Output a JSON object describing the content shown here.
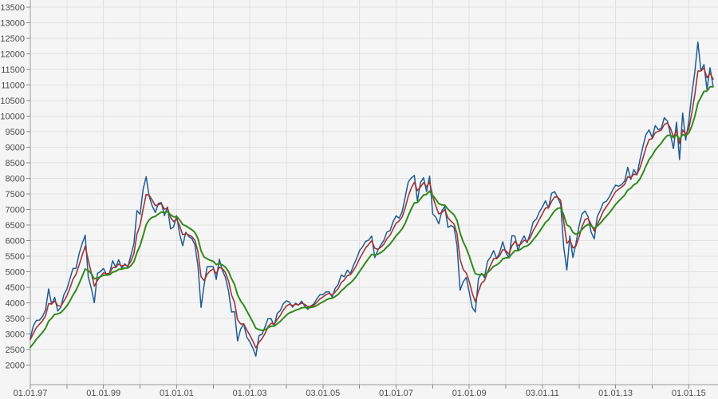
{
  "window": {
    "background": "#f5f5f5"
  },
  "chart": {
    "colors": {
      "background": "#f5f5f5",
      "grid": "#e1e1e1",
      "axis": "#9a9a9a",
      "tick": "#8a8a8a",
      "label_text": "#4c4c4c",
      "price": "#1d5c94",
      "ma_fast": "#a03434",
      "ma_slow": "#318a1c"
    }
  },
  "chart_data": {
    "type": "line",
    "title": "",
    "xlabel": "",
    "ylabel": "",
    "grid": true,
    "legend": false,
    "x_axis": {
      "start_year": 1997,
      "end_year": 2015,
      "minor_tick_every_years": 1,
      "label_every_years": 2,
      "tick_labels": [
        {
          "year": 1997,
          "label": "01.01.97"
        },
        {
          "year": 1999,
          "label": "01.01.99"
        },
        {
          "year": 2001,
          "label": "01.01.01"
        },
        {
          "year": 2003,
          "label": "01.01.03"
        },
        {
          "year": 2005,
          "label": "03.01.05"
        },
        {
          "year": 2007,
          "label": "01.01.07"
        },
        {
          "year": 2009,
          "label": "01.01.09"
        },
        {
          "year": 2011,
          "label": "03.01.11"
        },
        {
          "year": 2013,
          "label": "01.01.13"
        },
        {
          "year": 2015,
          "label": "01.01.15"
        }
      ]
    },
    "y_axis": {
      "tick_step": 500,
      "tick_values": [
        13500,
        13000,
        12500,
        12000,
        11500,
        11000,
        10500,
        10000,
        9500,
        9000,
        8500,
        8000,
        7500,
        7000,
        6500,
        6000,
        5500,
        5000,
        4500,
        4000,
        3500,
        3000,
        2500,
        2000
      ],
      "range_shown": [
        1350,
        13700
      ]
    },
    "sampling": "monthly samples, Jan 1997 - Sep 2015",
    "series": [
      {
        "name": "index-price",
        "color_key": "price",
        "stroke_width": 1.5,
        "values": [
          2850,
          3260,
          3430,
          3440,
          3560,
          3770,
          4440,
          3950,
          4170,
          3730,
          3850,
          4250,
          4440,
          4770,
          5100,
          5105,
          5570,
          5900,
          6170,
          4830,
          4470,
          4000,
          4940,
          5000,
          5100,
          4900,
          4950,
          5350,
          5140,
          5380,
          5100,
          5250,
          5150,
          5525,
          5900,
          6958,
          6835,
          7644,
          8050,
          7415,
          7110,
          6900,
          7190,
          7216,
          6798,
          7077,
          6372,
          6434,
          6795,
          6208,
          5830,
          6265,
          6123,
          6058,
          5861,
          5188,
          3850,
          4559,
          5154,
          5160,
          5156,
          4745,
          5397,
          5041,
          4818,
          4383,
          3700,
          3712,
          2769,
          3152,
          3320,
          2893,
          2747,
          2547,
          2280,
          2942,
          2982,
          3220,
          3487,
          3484,
          3256,
          3655,
          3746,
          3965,
          4058,
          4018,
          3857,
          3985,
          3921,
          4052,
          3895,
          3785,
          3893,
          3960,
          4126,
          4256,
          4254,
          4350,
          4348,
          4184,
          4460,
          4586,
          4886,
          4830,
          5044,
          4929,
          5193,
          5408,
          5674,
          5796,
          5970,
          6009,
          6140,
          5450,
          5682,
          5859,
          6004,
          6268,
          6309,
          6597,
          6789,
          6715,
          6917,
          7409,
          7883,
          8007,
          8090,
          7270,
          7861,
          8019,
          7570,
          8067,
          6851,
          6748,
          6535,
          6948,
          7096,
          6418,
          6479,
          6422,
          5831,
          4400,
          4669,
          4810,
          4338,
          3843,
          3700,
          4769,
          4940,
          4809,
          5332,
          5465,
          5675,
          5414,
          5626,
          5957,
          5609,
          5434,
          6154,
          6136,
          5670,
          5966,
          6148,
          5925,
          6229,
          6601,
          6688,
          6914,
          7077,
          7272,
          7041,
          7514,
          7570,
          7376,
          7159,
          5785,
          5050,
          6141,
          5450,
          5898,
          6459,
          6856,
          6947,
          6761,
          6264,
          6050,
          6772,
          6971,
          7216,
          7260,
          7405,
          7612,
          7776,
          7741,
          7795,
          7914,
          8349,
          7959,
          8276,
          8103,
          8594,
          9034,
          9405,
          9552,
          9306,
          9692,
          9556,
          9603,
          9943,
          9833,
          9407,
          8950,
          9799,
          8600,
          10093,
          9220,
          9805,
          10694,
          11402,
          12375,
          11454,
          11650,
          10850,
          11550,
          10950
        ]
      },
      {
        "name": "moving-average-fast",
        "color_key": "ma_fast",
        "stroke_width": 1.6,
        "derived": {
          "method": "ema",
          "of": "index-price",
          "alpha": 0.45,
          "seed": 2780
        }
      },
      {
        "name": "moving-average-slow",
        "color_key": "ma_slow",
        "stroke_width": 2,
        "derived": {
          "method": "ema",
          "of": "index-price",
          "alpha": 0.18,
          "seed": 2500
        }
      }
    ]
  }
}
